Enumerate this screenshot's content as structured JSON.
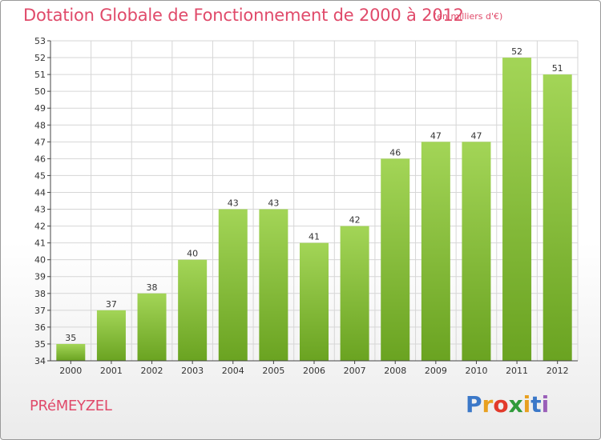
{
  "title": "Dotation Globale de Fonctionnement de 2000 à 2012",
  "subtitle": "(en milliers d'€)",
  "commune": "PRéMEYZEL",
  "logo": {
    "letters": [
      "P",
      "r",
      "o",
      "x",
      "i",
      "t",
      "i"
    ],
    "colors": [
      "#3b78c8",
      "#e8a020",
      "#e23a2a",
      "#2f9a3a",
      "#e8a020",
      "#3b78c8",
      "#9a5fb8"
    ]
  },
  "colors": {
    "bar_top": "#a3d557",
    "bar_bottom": "#6aa321",
    "title": "#e04a6a",
    "grid": "#d6d6d6",
    "axis": "#444444"
  },
  "chart_data": {
    "type": "bar",
    "title": "Dotation Globale de Fonctionnement de 2000 à 2012",
    "subtitle": "(en milliers d'€)",
    "categories": [
      "2000",
      "2001",
      "2002",
      "2003",
      "2004",
      "2005",
      "2006",
      "2007",
      "2008",
      "2009",
      "2010",
      "2011",
      "2012"
    ],
    "values": [
      35,
      37,
      38,
      40,
      43,
      43,
      41,
      42,
      46,
      47,
      47,
      52,
      51
    ],
    "ylim": [
      34,
      53
    ],
    "yticks": [
      34,
      35,
      36,
      37,
      38,
      39,
      40,
      41,
      42,
      43,
      44,
      45,
      46,
      47,
      48,
      49,
      50,
      51,
      52,
      53
    ],
    "grid": true
  }
}
